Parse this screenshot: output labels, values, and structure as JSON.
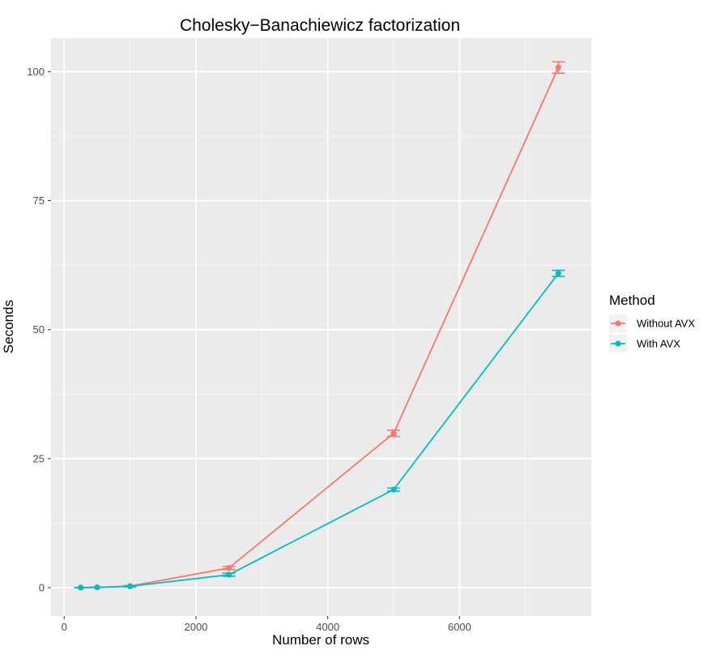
{
  "chart_data": {
    "type": "line",
    "title": "Cholesky−Banachiewicz factorization",
    "xlabel": "Number of rows",
    "ylabel": "Seconds",
    "xlim": [
      -200,
      8000
    ],
    "ylim": [
      -5.5,
      106.5
    ],
    "x_ticks": [
      0,
      2000,
      4000,
      6000
    ],
    "x_tick_labels": [
      "0",
      "2000",
      "4000",
      "6000"
    ],
    "y_ticks": [
      0,
      25,
      50,
      75,
      100
    ],
    "y_tick_labels": [
      "0",
      "25",
      "50",
      "75",
      "100"
    ],
    "grid": true,
    "legend": {
      "title": "Method",
      "placement": "right"
    },
    "series": [
      {
        "name": "Without AVX",
        "color": "#F8766D",
        "points": [
          {
            "x": 250,
            "y": 0.0,
            "ymin": 0.0,
            "ymax": 0.0
          },
          {
            "x": 500,
            "y": 0.05,
            "ymin": 0.05,
            "ymax": 0.05
          },
          {
            "x": 1000,
            "y": 0.3,
            "ymin": 0.2,
            "ymax": 0.4
          },
          {
            "x": 2500,
            "y": 3.8,
            "ymin": 3.5,
            "ymax": 4.1
          },
          {
            "x": 5000,
            "y": 29.9,
            "ymin": 29.3,
            "ymax": 30.5
          },
          {
            "x": 7500,
            "y": 100.8,
            "ymin": 99.7,
            "ymax": 101.9
          }
        ]
      },
      {
        "name": "With AVX",
        "color": "#00BFC4",
        "points": [
          {
            "x": 250,
            "y": 0.0,
            "ymin": 0.0,
            "ymax": 0.0
          },
          {
            "x": 500,
            "y": 0.05,
            "ymin": 0.05,
            "ymax": 0.05
          },
          {
            "x": 1000,
            "y": 0.25,
            "ymin": 0.15,
            "ymax": 0.35
          },
          {
            "x": 2500,
            "y": 2.5,
            "ymin": 2.2,
            "ymax": 2.8
          },
          {
            "x": 5000,
            "y": 19.0,
            "ymin": 18.7,
            "ymax": 19.3
          },
          {
            "x": 7500,
            "y": 60.9,
            "ymin": 60.3,
            "ymax": 61.5
          }
        ]
      }
    ]
  }
}
